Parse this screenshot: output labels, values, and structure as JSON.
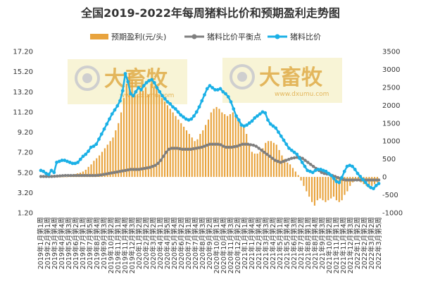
{
  "chart_data": {
    "type": "bar+line",
    "title": "全国2019-2022年每周猪料比价和预期盈利走势图",
    "legend": [
      "预期盈利(元/头)",
      "猪料比价平衡点",
      "猪料比价"
    ],
    "legend_position": "top",
    "grid": false,
    "y_left": {
      "min": 1.2,
      "max": 17.2,
      "ticks": [
        "1.20",
        "3.20",
        "5.20",
        "7.20",
        "9.20",
        "11.20",
        "13.20",
        "15.20",
        "17.20"
      ]
    },
    "y_right": {
      "min": -1000,
      "max": 3500,
      "ticks": [
        "-1000",
        "-500",
        "0",
        "500",
        "1000",
        "1500",
        "2000",
        "2500",
        "3000",
        "3500"
      ]
    },
    "x_labels": [
      "2019年1月第1周",
      "2019年2月第1周",
      "2019年3月第4周",
      "2019年4月第4周",
      "2019年5月第3周",
      "2019年6月第2周",
      "2019年7月第1周",
      "2019年7月第5周",
      "2019年8月第4周",
      "2019年9月第3周",
      "2019年10月第2周",
      "2019年11月第1周",
      "2019年11月第4周",
      "2019年12月第3周",
      "2020年1月第2周",
      "2020年2月第2周",
      "2020年3月第2周",
      "2020年4月第1周",
      "2020年4月第5周",
      "2020年5月第4周",
      "2020年6月第2周",
      "2020年7月第1周",
      "2020年7月第4周",
      "2020年8月第3周",
      "2020年9月第2周",
      "2020年10月第1周",
      "2020年10月第4周",
      "2020年11月第3周",
      "2020年12月第2周",
      "2021年1月第1周",
      "2021年1月第4周",
      "2021年2月第4周",
      "2021年3月第3周",
      "2021年4月第2周",
      "2021年5月第1周",
      "2021年5月第4周",
      "2021年6月第3周",
      "2021年7月第2周",
      "2021年8月第1周",
      "2021年8月第4周",
      "2021年9月第3周",
      "2021年10月第2周",
      "2021年11月第1周",
      "2021年11月第4周",
      "2021年12月第3周",
      "2022年1月第2周",
      "2022年2月第2周",
      "2022年3月第2周",
      "2022年3月第5周"
    ],
    "series": [
      {
        "name": "预期盈利(元/头)",
        "axis": "right",
        "kind": "bar",
        "color": "#e8a33d",
        "values": [
          0,
          0,
          0,
          0,
          0,
          0,
          0,
          0,
          0,
          0,
          30,
          50,
          80,
          100,
          120,
          150,
          200,
          280,
          350,
          450,
          520,
          600,
          700,
          800,
          900,
          1000,
          1100,
          1300,
          1500,
          1800,
          2200,
          2600,
          2900,
          2700,
          2400,
          2300,
          2400,
          2400,
          2500,
          2300,
          2600,
          2500,
          2450,
          2300,
          2200,
          2100,
          2000,
          1900,
          1800,
          1700,
          1600,
          1500,
          1400,
          1300,
          1200,
          1100,
          1000,
          1050,
          1200,
          1300,
          1450,
          1600,
          1800,
          1900,
          1950,
          1900,
          1800,
          1750,
          1700,
          1750,
          1800,
          1700,
          1600,
          1500,
          1400,
          1200,
          900,
          700,
          650,
          650,
          700,
          800,
          950,
          1000,
          1000,
          950,
          900,
          750,
          600,
          500,
          400,
          350,
          250,
          150,
          50,
          -100,
          -250,
          -400,
          -550,
          -700,
          -800,
          -650,
          -600,
          -650,
          -700,
          -650,
          -600,
          -550,
          -650,
          -700,
          -650,
          -500,
          -400,
          -250,
          -150,
          -100,
          -100,
          -150,
          -200,
          -250,
          -300,
          -250,
          -200,
          -150
        ]
      },
      {
        "name": "猪料比价平衡点",
        "axis": "left",
        "kind": "line",
        "color": "#7f7f7f",
        "values": [
          4.8,
          4.8,
          4.8,
          4.8,
          4.8,
          4.82,
          4.84,
          4.86,
          4.88,
          4.9,
          4.9,
          4.9,
          4.9,
          4.9,
          4.9,
          4.9,
          4.9,
          4.9,
          4.9,
          4.9,
          4.9,
          4.92,
          4.95,
          5.0,
          5.05,
          5.1,
          5.15,
          5.2,
          5.25,
          5.3,
          5.35,
          5.4,
          5.45,
          5.5,
          5.5,
          5.5,
          5.5,
          5.55,
          5.6,
          5.65,
          5.7,
          5.8,
          5.9,
          6.1,
          6.4,
          6.8,
          7.2,
          7.5,
          7.6,
          7.6,
          7.6,
          7.55,
          7.5,
          7.5,
          7.5,
          7.5,
          7.55,
          7.6,
          7.65,
          7.7,
          7.8,
          7.9,
          8.0,
          8.0,
          8.0,
          8.0,
          7.95,
          7.8,
          7.7,
          7.7,
          7.7,
          7.75,
          7.8,
          7.9,
          8.0,
          8.0,
          8.0,
          7.95,
          7.9,
          7.8,
          7.6,
          7.4,
          7.2,
          7.0,
          6.8,
          6.6,
          6.4,
          6.3,
          6.2,
          6.3,
          6.4,
          6.5,
          6.6,
          6.65,
          6.7,
          6.7,
          6.6,
          6.4,
          6.2,
          6.0,
          5.8,
          5.6,
          5.4,
          5.2,
          5.1,
          5.05,
          5.0,
          4.9,
          4.8,
          4.7,
          4.6,
          4.5,
          4.45,
          4.45,
          4.45,
          4.45,
          4.45,
          4.45,
          4.45,
          4.45,
          4.45,
          4.45,
          4.45,
          4.45,
          4.45
        ]
      },
      {
        "name": "猪料比价",
        "axis": "left",
        "kind": "line",
        "color": "#1ab0e6",
        "values": [
          5.4,
          5.3,
          5.1,
          5.0,
          5.4,
          5.2,
          6.2,
          6.3,
          6.4,
          6.4,
          6.3,
          6.2,
          6.1,
          6.1,
          6.2,
          6.5,
          6.8,
          7.0,
          7.3,
          7.7,
          7.8,
          8.0,
          8.5,
          9.0,
          9.5,
          10.0,
          10.5,
          11.0,
          11.4,
          11.8,
          12.3,
          13.3,
          15.0,
          14.2,
          13.0,
          12.8,
          13.2,
          13.6,
          13.4,
          13.8,
          14.1,
          14.3,
          14.4,
          14.1,
          13.6,
          13.2,
          12.8,
          12.5,
          12.2,
          12.0,
          11.7,
          11.5,
          11.2,
          10.9,
          10.7,
          10.5,
          10.4,
          10.5,
          10.8,
          11.2,
          11.7,
          12.3,
          12.9,
          13.5,
          13.8,
          13.6,
          13.4,
          13.4,
          13.5,
          13.2,
          13.0,
          12.7,
          12.2,
          11.5,
          10.8,
          10.4,
          9.9,
          9.8,
          9.9,
          10.1,
          10.3,
          10.6,
          10.8,
          11.0,
          11.2,
          11.1,
          10.4,
          10.0,
          9.8,
          9.6,
          9.2,
          8.8,
          8.4,
          8.0,
          7.6,
          7.4,
          7.2,
          7.0,
          6.6,
          6.2,
          5.8,
          5.4,
          5.3,
          5.2,
          5.4,
          5.5,
          5.5,
          5.4,
          5.3,
          5.1,
          4.9,
          4.6,
          4.3,
          4.2,
          4.7,
          5.3,
          5.8,
          5.9,
          5.8,
          5.5,
          5.1,
          4.8,
          4.5,
          4.2,
          3.9,
          3.7,
          3.6,
          3.9,
          4.1
        ]
      }
    ]
  },
  "watermarks": [
    {
      "text": "大畜牧",
      "sub": "www.dxumu.com"
    },
    {
      "text": "大畜牧",
      "sub": "www.dxumu.com"
    }
  ]
}
